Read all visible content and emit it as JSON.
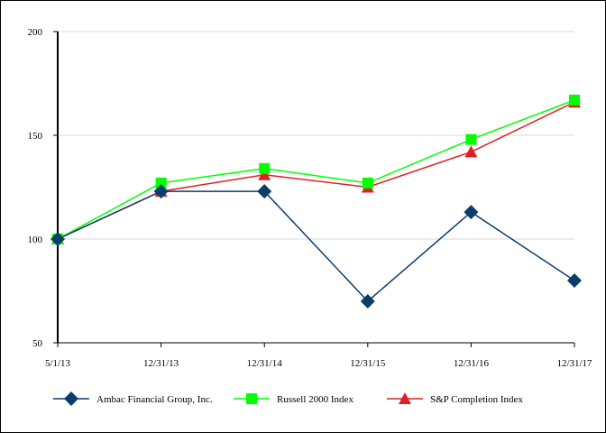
{
  "chart_data": {
    "type": "line",
    "title": "",
    "xlabel": "",
    "ylabel": "",
    "categories": [
      "5/1/13",
      "12/31/13",
      "12/31/14",
      "12/31/15",
      "12/31/16",
      "12/31/17"
    ],
    "ylim": [
      50,
      200
    ],
    "yticks": [
      50,
      100,
      150,
      200
    ],
    "grid": true,
    "legend_position": "bottom",
    "series": [
      {
        "name": "Ambac Financial Group, Inc.",
        "color": "#0b3d6b",
        "marker": "diamond",
        "values": [
          100,
          123,
          123,
          70,
          113,
          80
        ]
      },
      {
        "name": "Russell 2000 Index",
        "color": "#00ff00",
        "marker": "square",
        "values": [
          100,
          127,
          134,
          127,
          148,
          167
        ]
      },
      {
        "name": "S&P Completion Index",
        "color": "#e02020",
        "marker": "triangle",
        "values": [
          100,
          123,
          131,
          125,
          142,
          166
        ]
      }
    ]
  }
}
